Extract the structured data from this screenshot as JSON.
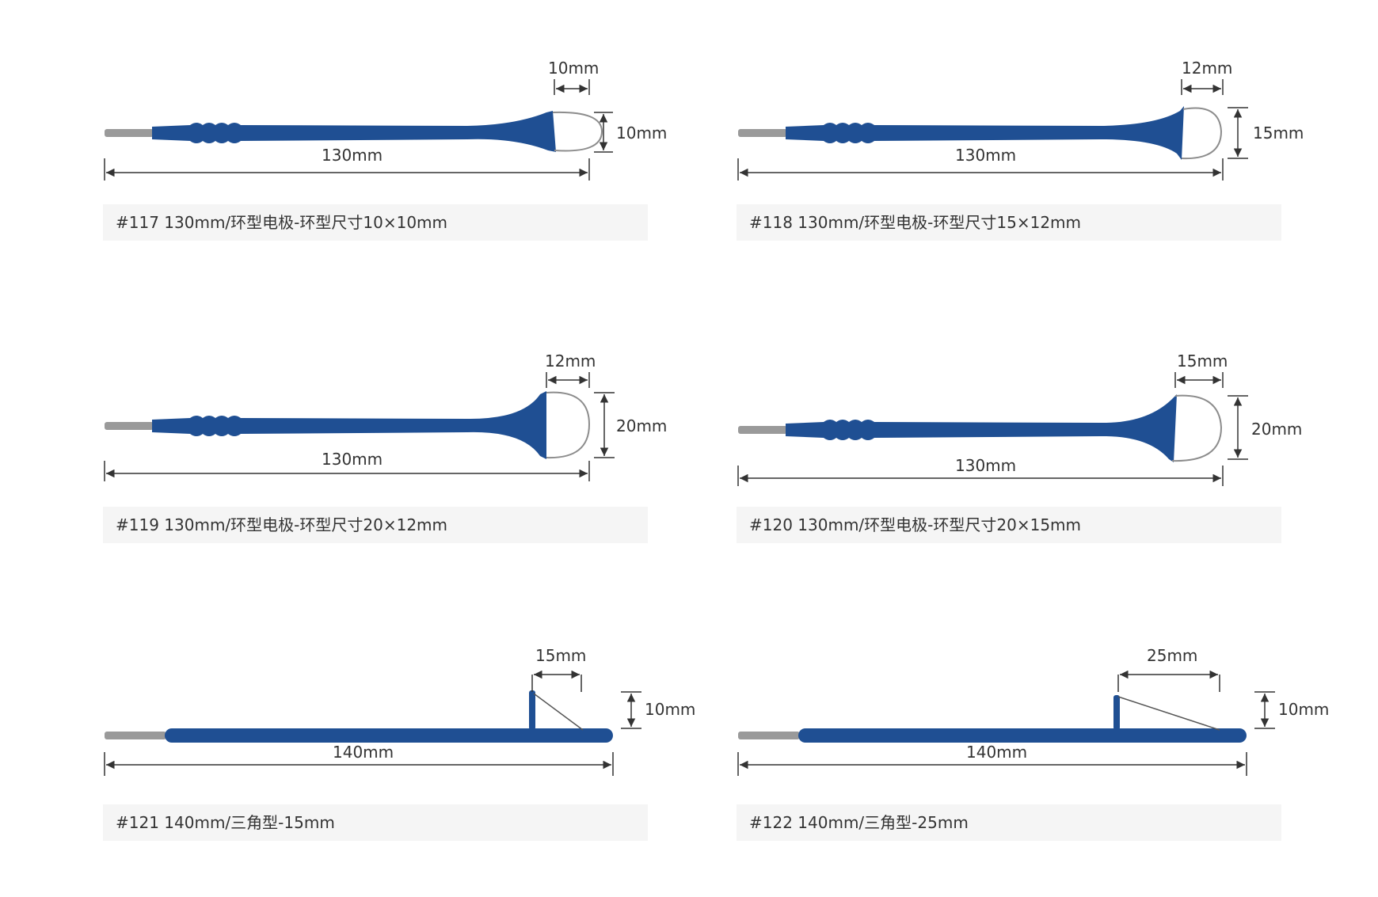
{
  "colors": {
    "handle": "#1f4f93",
    "handle_edge": "#173f78",
    "pin": "#9a9a9a",
    "wire": "#8c8c8c",
    "dim_line": "#333333",
    "caption_bg": "#f5f5f5"
  },
  "electrodes": [
    {
      "type": "loop",
      "length_label": "130mm",
      "width_label": "10mm",
      "height_label": "10mm",
      "caption": "#117 130mm/环型电极-环型尺寸10×10mm"
    },
    {
      "type": "loop",
      "length_label": "130mm",
      "width_label": "12mm",
      "height_label": "15mm",
      "caption": "#118 130mm/环型电极-环型尺寸15×12mm"
    },
    {
      "type": "loop",
      "length_label": "130mm",
      "width_label": "12mm",
      "height_label": "20mm",
      "caption": "#119 130mm/环型电极-环型尺寸20×12mm"
    },
    {
      "type": "loop",
      "length_label": "130mm",
      "width_label": "15mm",
      "height_label": "20mm",
      "caption": "#120 130mm/环型电极-环型尺寸20×15mm"
    },
    {
      "type": "triangle",
      "length_label": "140mm",
      "width_label": "15mm",
      "height_label": "10mm",
      "caption": "#121 140mm/三角型-15mm"
    },
    {
      "type": "triangle",
      "length_label": "140mm",
      "width_label": "25mm",
      "height_label": "10mm",
      "caption": "#122 140mm/三角型-25mm"
    }
  ]
}
